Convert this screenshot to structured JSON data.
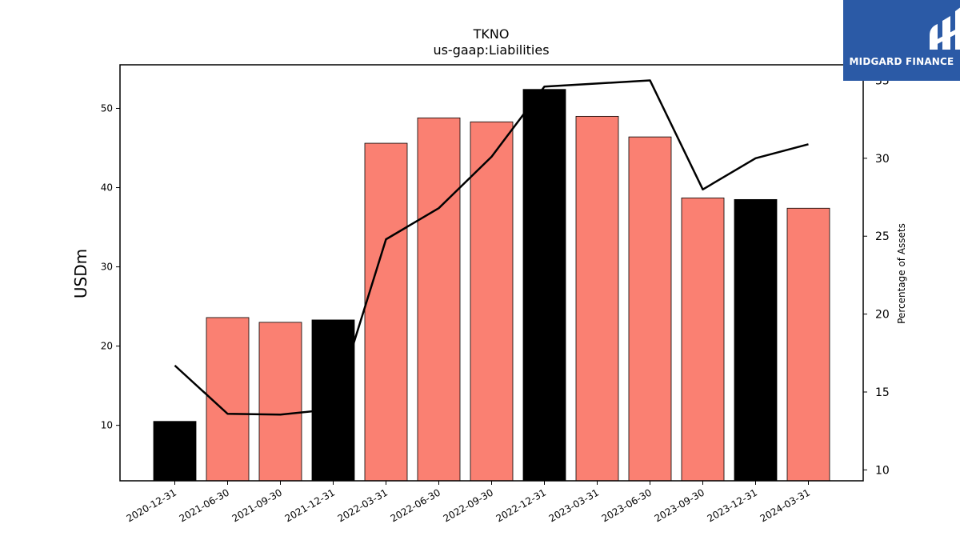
{
  "chart_data": {
    "type": "bar",
    "title": "TKNO",
    "subtitle": "us-gaap:Liabilities",
    "ylabel": "USDm",
    "y2label": "Percentage of Assets",
    "categories": [
      "2020-12-31",
      "2021-06-30",
      "2021-09-30",
      "2021-12-31",
      "2022-03-31",
      "2022-06-30",
      "2022-09-30",
      "2022-12-31",
      "2023-03-31",
      "2023-06-30",
      "2023-09-30",
      "2023-12-31",
      "2024-03-31"
    ],
    "series": [
      {
        "kind": "bar",
        "axis": "left",
        "values": [
          10.5,
          23.6,
          23.0,
          23.3,
          45.6,
          48.8,
          48.3,
          52.4,
          49.0,
          46.4,
          38.7,
          38.5,
          37.4
        ],
        "colors": [
          "#000000",
          "#fa8072",
          "#fa8072",
          "#000000",
          "#fa8072",
          "#fa8072",
          "#fa8072",
          "#000000",
          "#fa8072",
          "#fa8072",
          "#fa8072",
          "#000000",
          "#fa8072"
        ]
      },
      {
        "kind": "line",
        "axis": "right",
        "color": "#000000",
        "values": [
          16.7,
          13.6,
          13.55,
          13.9,
          24.8,
          26.8,
          30.1,
          34.6,
          34.8,
          35.0,
          28.0,
          30.0,
          30.9
        ]
      }
    ],
    "ylim": [
      3.0,
      55.5
    ],
    "y2lim": [
      9.3,
      36.0
    ],
    "yticks": [
      10,
      20,
      30,
      40,
      50
    ],
    "y2ticks": [
      10,
      15,
      20,
      25,
      30,
      35
    ],
    "grid": false,
    "legend": "none"
  },
  "logo": {
    "text": "MIDGARD FINANCE",
    "color": "#2b5aa6"
  }
}
